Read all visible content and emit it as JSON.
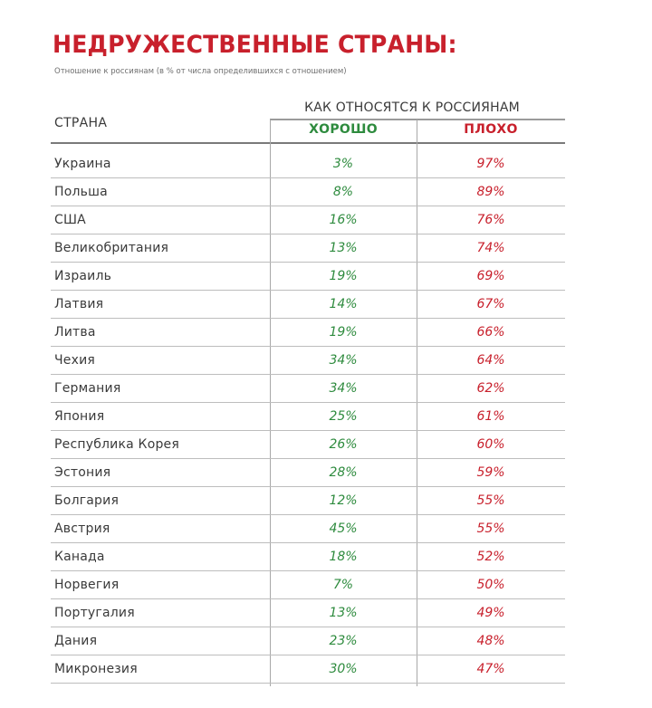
{
  "title": "НЕДРУЖЕСТВЕННЫЕ СТРАНЫ:",
  "subtitle": "Отношение к россиянам (в % от числа определившихся с отношением)",
  "table": {
    "col_country": "СТРАНА",
    "col_group": "КАК ОТНОСЯТСЯ К РОССИЯНАМ",
    "col_good": "ХОРОШО",
    "col_bad": "ПЛОХО",
    "rows": [
      {
        "country": "Украина",
        "good": "3%",
        "bad": "97%"
      },
      {
        "country": "Польша",
        "good": "8%",
        "bad": "89%"
      },
      {
        "country": "США",
        "good": "16%",
        "bad": "76%"
      },
      {
        "country": "Великобритания",
        "good": "13%",
        "bad": "74%"
      },
      {
        "country": "Израиль",
        "good": "19%",
        "bad": "69%"
      },
      {
        "country": "Латвия",
        "good": "14%",
        "bad": "67%"
      },
      {
        "country": "Литва",
        "good": "19%",
        "bad": "66%"
      },
      {
        "country": "Чехия",
        "good": "34%",
        "bad": "64%"
      },
      {
        "country": "Германия",
        "good": "34%",
        "bad": "62%"
      },
      {
        "country": "Япония",
        "good": "25%",
        "bad": "61%"
      },
      {
        "country": "Республика Корея",
        "good": "26%",
        "bad": "60%"
      },
      {
        "country": "Эстония",
        "good": "28%",
        "bad": "59%"
      },
      {
        "country": "Болгария",
        "good": "12%",
        "bad": "55%"
      },
      {
        "country": "Австрия",
        "good": "45%",
        "bad": "55%"
      },
      {
        "country": "Канада",
        "good": "18%",
        "bad": "52%"
      },
      {
        "country": "Норвегия",
        "good": "7%",
        "bad": "50%"
      },
      {
        "country": "Португалия",
        "good": "13%",
        "bad": "49%"
      },
      {
        "country": "Дания",
        "good": "23%",
        "bad": "48%"
      },
      {
        "country": "Микронезия",
        "good": "30%",
        "bad": "47%"
      }
    ]
  },
  "colors": {
    "title_red": "#c8202c",
    "good_green": "#2e8b3e",
    "bad_red": "#c8202c",
    "text_gray": "#3a3a3a"
  }
}
